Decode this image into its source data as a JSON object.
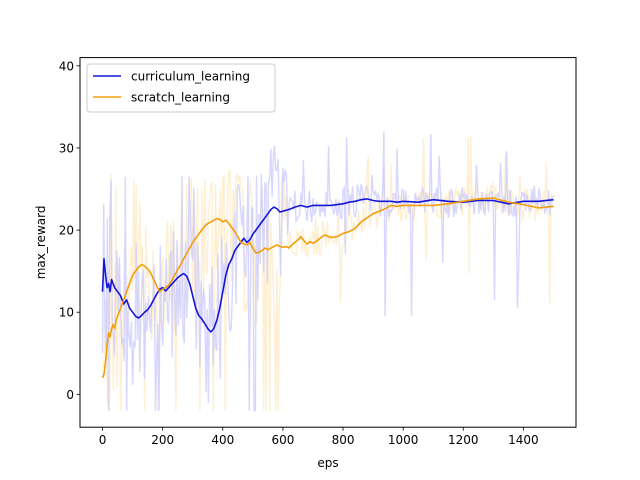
{
  "chart_data": {
    "type": "line",
    "title": "",
    "xlabel": "eps",
    "ylabel": "max_reward",
    "xlim": [
      -75,
      1575
    ],
    "ylim": [
      -4,
      41
    ],
    "xticks": [
      0,
      200,
      400,
      600,
      800,
      1000,
      1200,
      1400
    ],
    "yticks": [
      0,
      10,
      20,
      30,
      40
    ],
    "grid": false,
    "legend_position": "top-left",
    "series": [
      {
        "name": "curriculum_learning",
        "color": "#1515d8",
        "raw_color": "#c9c9ff",
        "x": [
          0,
          5,
          10,
          15,
          20,
          25,
          30,
          40,
          50,
          60,
          70,
          80,
          90,
          100,
          110,
          120,
          130,
          140,
          150,
          160,
          170,
          180,
          190,
          200,
          210,
          220,
          230,
          240,
          250,
          260,
          270,
          280,
          290,
          300,
          310,
          320,
          330,
          340,
          350,
          360,
          370,
          380,
          390,
          400,
          410,
          420,
          430,
          440,
          450,
          460,
          470,
          480,
          490,
          500,
          510,
          520,
          530,
          540,
          550,
          560,
          570,
          580,
          590,
          600,
          620,
          640,
          660,
          680,
          700,
          720,
          740,
          760,
          780,
          800,
          820,
          840,
          860,
          880,
          900,
          920,
          940,
          960,
          980,
          1000,
          1050,
          1100,
          1150,
          1200,
          1250,
          1300,
          1350,
          1400,
          1450,
          1500
        ],
        "values": [
          12.5,
          16.5,
          14.5,
          13,
          13.5,
          12.5,
          14,
          13,
          12.5,
          12,
          11,
          11.5,
          10.5,
          10,
          9.5,
          9.3,
          9.6,
          10,
          10.3,
          10.8,
          11.5,
          12.2,
          12.8,
          13,
          12.6,
          13,
          13.4,
          13.8,
          14.2,
          14.5,
          14.7,
          14.4,
          13.5,
          12,
          10.5,
          9.6,
          9.2,
          8.6,
          8,
          7.6,
          8,
          9,
          10.5,
          12.5,
          14.5,
          15.8,
          16.5,
          17.5,
          18,
          18.5,
          19,
          18.5,
          18.8,
          19.5,
          20,
          20.5,
          21,
          21.5,
          22,
          22.5,
          22.8,
          22.6,
          22.2,
          22.3,
          22.5,
          22.8,
          23,
          22.8,
          23,
          23,
          23,
          23,
          23.1,
          23.2,
          23.4,
          23.5,
          23.7,
          23.8,
          23.6,
          23.5,
          23.5,
          23.5,
          23.4,
          23.5,
          23.4,
          23.7,
          23.5,
          23.4,
          23.6,
          23.6,
          23.2,
          23.5,
          23.5,
          23.7
        ]
      },
      {
        "name": "scratch_learning",
        "color": "#f29e0c",
        "raw_color": "#fde9c3",
        "x": [
          0,
          5,
          10,
          15,
          20,
          25,
          30,
          35,
          40,
          45,
          50,
          60,
          70,
          80,
          90,
          100,
          110,
          120,
          130,
          140,
          150,
          160,
          170,
          180,
          190,
          200,
          210,
          220,
          230,
          240,
          250,
          260,
          270,
          280,
          290,
          300,
          310,
          320,
          330,
          340,
          350,
          360,
          370,
          380,
          390,
          400,
          410,
          420,
          430,
          440,
          450,
          460,
          470,
          480,
          490,
          500,
          510,
          520,
          530,
          540,
          550,
          560,
          570,
          580,
          590,
          600,
          610,
          620,
          630,
          640,
          650,
          660,
          670,
          680,
          690,
          700,
          710,
          720,
          730,
          740,
          760,
          780,
          800,
          820,
          840,
          860,
          880,
          900,
          920,
          940,
          960,
          980,
          1000,
          1050,
          1100,
          1150,
          1200,
          1250,
          1300,
          1350,
          1400,
          1450,
          1500
        ],
        "values": [
          2,
          2.5,
          4,
          6,
          7.5,
          7,
          8,
          8.5,
          8,
          9,
          9.5,
          10.5,
          11.5,
          12.5,
          13.5,
          14.5,
          15,
          15.5,
          15.8,
          15.6,
          15.3,
          14.8,
          14,
          13.2,
          12.5,
          12.8,
          13,
          13.3,
          13.8,
          14.5,
          15.2,
          15.8,
          16.5,
          17.2,
          17.8,
          18.5,
          19,
          19.5,
          20,
          20.5,
          20.8,
          21,
          21.2,
          21.4,
          21.3,
          21,
          21.2,
          20.8,
          20.3,
          19.8,
          19.2,
          18.5,
          18.3,
          18.2,
          18.5,
          17.8,
          17.2,
          17.3,
          17.5,
          17.8,
          17.6,
          17.8,
          18,
          18.2,
          18,
          17.9,
          18,
          17.8,
          18.2,
          18.5,
          18.8,
          19.2,
          18.7,
          18.3,
          18.6,
          18.4,
          18.6,
          18.9,
          19.2,
          19.4,
          19.1,
          19.2,
          19.6,
          19.8,
          20.2,
          21,
          21.5,
          22,
          22.3,
          22.6,
          23,
          22.9,
          23,
          23,
          23,
          23.2,
          23.5,
          23.8,
          23.9,
          23.4,
          23.1,
          22.7,
          22.9
        ]
      }
    ]
  }
}
